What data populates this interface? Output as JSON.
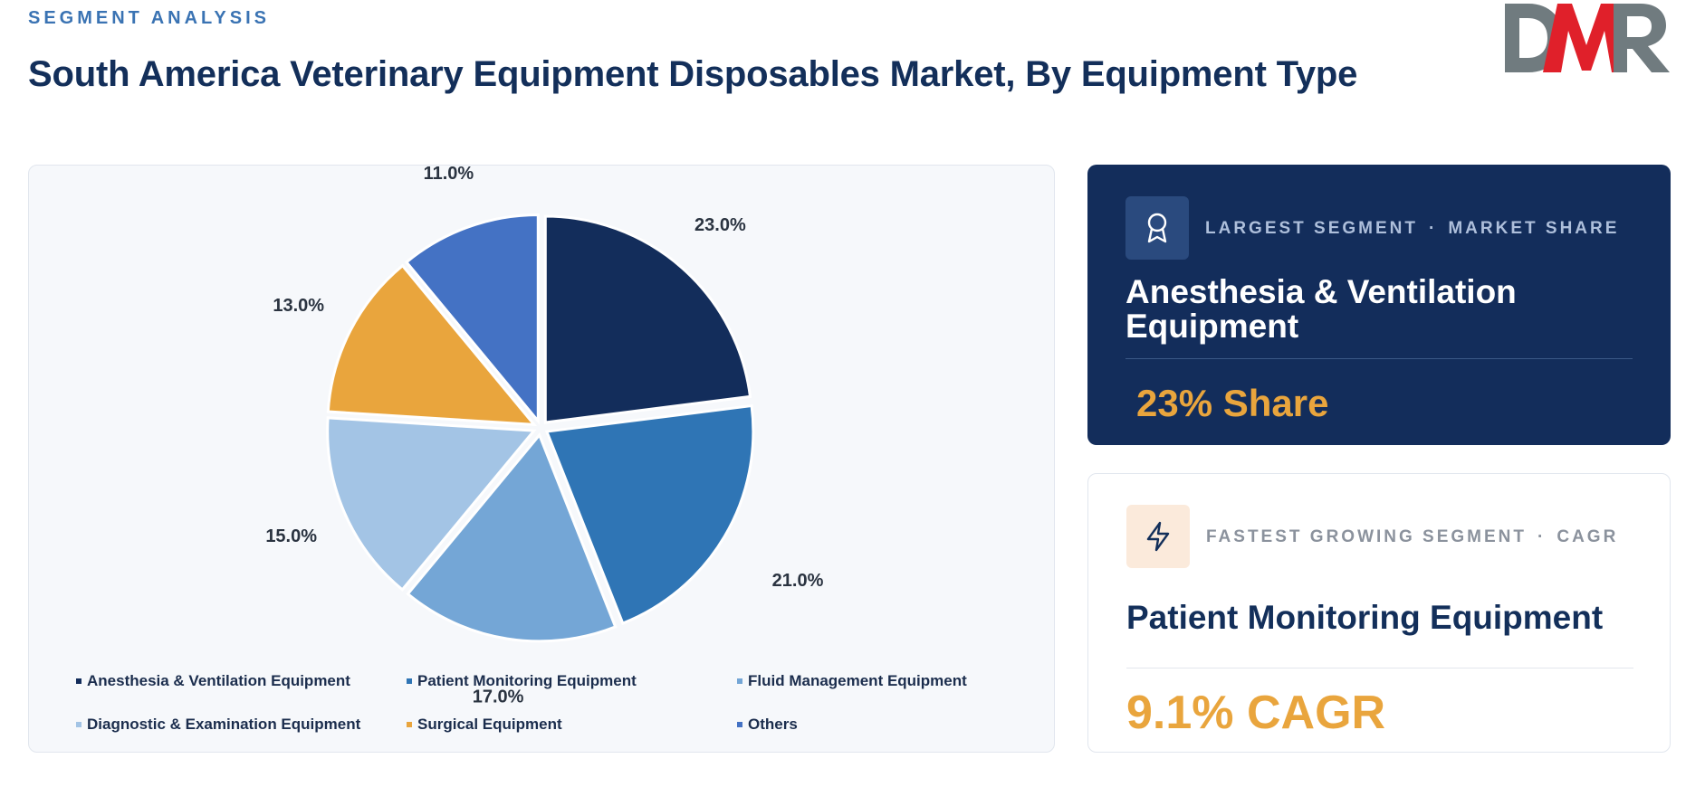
{
  "header": {
    "eyebrow": "SEGMENT ANALYSIS",
    "title": "South America Veterinary Equipment Disposables Market, By Equipment Type"
  },
  "logo": {
    "text": "DMR",
    "colors": {
      "d": "#707b7f",
      "m": "#e0202a",
      "r": "#707b7f"
    }
  },
  "chart_data": {
    "type": "pie",
    "title": "",
    "categories": [
      "Anesthesia & Ventilation Equipment",
      "Patient Monitoring Equipment",
      "Fluid Management Equipment",
      "Diagnostic & Examination Equipment",
      "Surgical Equipment",
      "Others"
    ],
    "values": [
      23.0,
      21.0,
      17.0,
      15.0,
      13.0,
      11.0
    ],
    "labels": [
      "23.0%",
      "21.0%",
      "17.0%",
      "15.0%",
      "13.0%",
      "11.0%"
    ],
    "colors": [
      "#132d5b",
      "#2f75b5",
      "#74a6d6",
      "#a3c4e5",
      "#e9a53d",
      "#4472c4"
    ],
    "legend_position": "bottom"
  },
  "largest_segment": {
    "kicker_left": "LARGEST SEGMENT",
    "kicker_sep": "·",
    "kicker_right": "MARKET SHARE",
    "name": "Anesthesia & Ventilation Equipment",
    "stat": "23% Share",
    "icon": "award-icon"
  },
  "fastest_segment": {
    "kicker_left": "FASTEST GROWING SEGMENT",
    "kicker_sep": "·",
    "kicker_right": "CAGR",
    "name": "Patient Monitoring Equipment",
    "stat": "9.1% CAGR",
    "icon": "lightning-icon"
  }
}
